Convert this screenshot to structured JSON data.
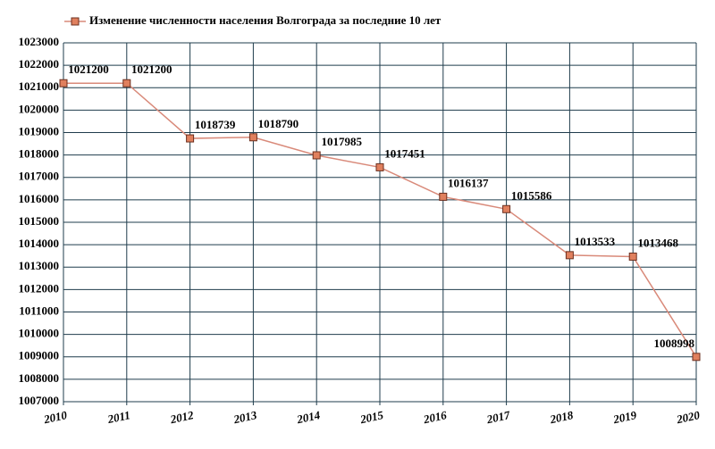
{
  "chart_data": {
    "type": "line",
    "categories": [
      "2010",
      "2011",
      "2012",
      "2013",
      "2014",
      "2015",
      "2016",
      "2017",
      "2018",
      "2019",
      "2020"
    ],
    "series": [
      {
        "name": "Изменение численности населения Волгограда за последние 10 лет",
        "color": "#d98a7a",
        "marker_color": "#e0805e",
        "values": [
          1021200,
          1021200,
          1018739,
          1018790,
          1017985,
          1017451,
          1016137,
          1015586,
          1013533,
          1013468,
          1008998
        ]
      }
    ],
    "ylim": [
      1007000,
      1023000
    ],
    "yticks": [
      1007000,
      1008000,
      1009000,
      1010000,
      1011000,
      1012000,
      1013000,
      1014000,
      1015000,
      1016000,
      1017000,
      1018000,
      1019000,
      1020000,
      1021000,
      1022000,
      1023000
    ],
    "grid": true,
    "legend": "top"
  }
}
